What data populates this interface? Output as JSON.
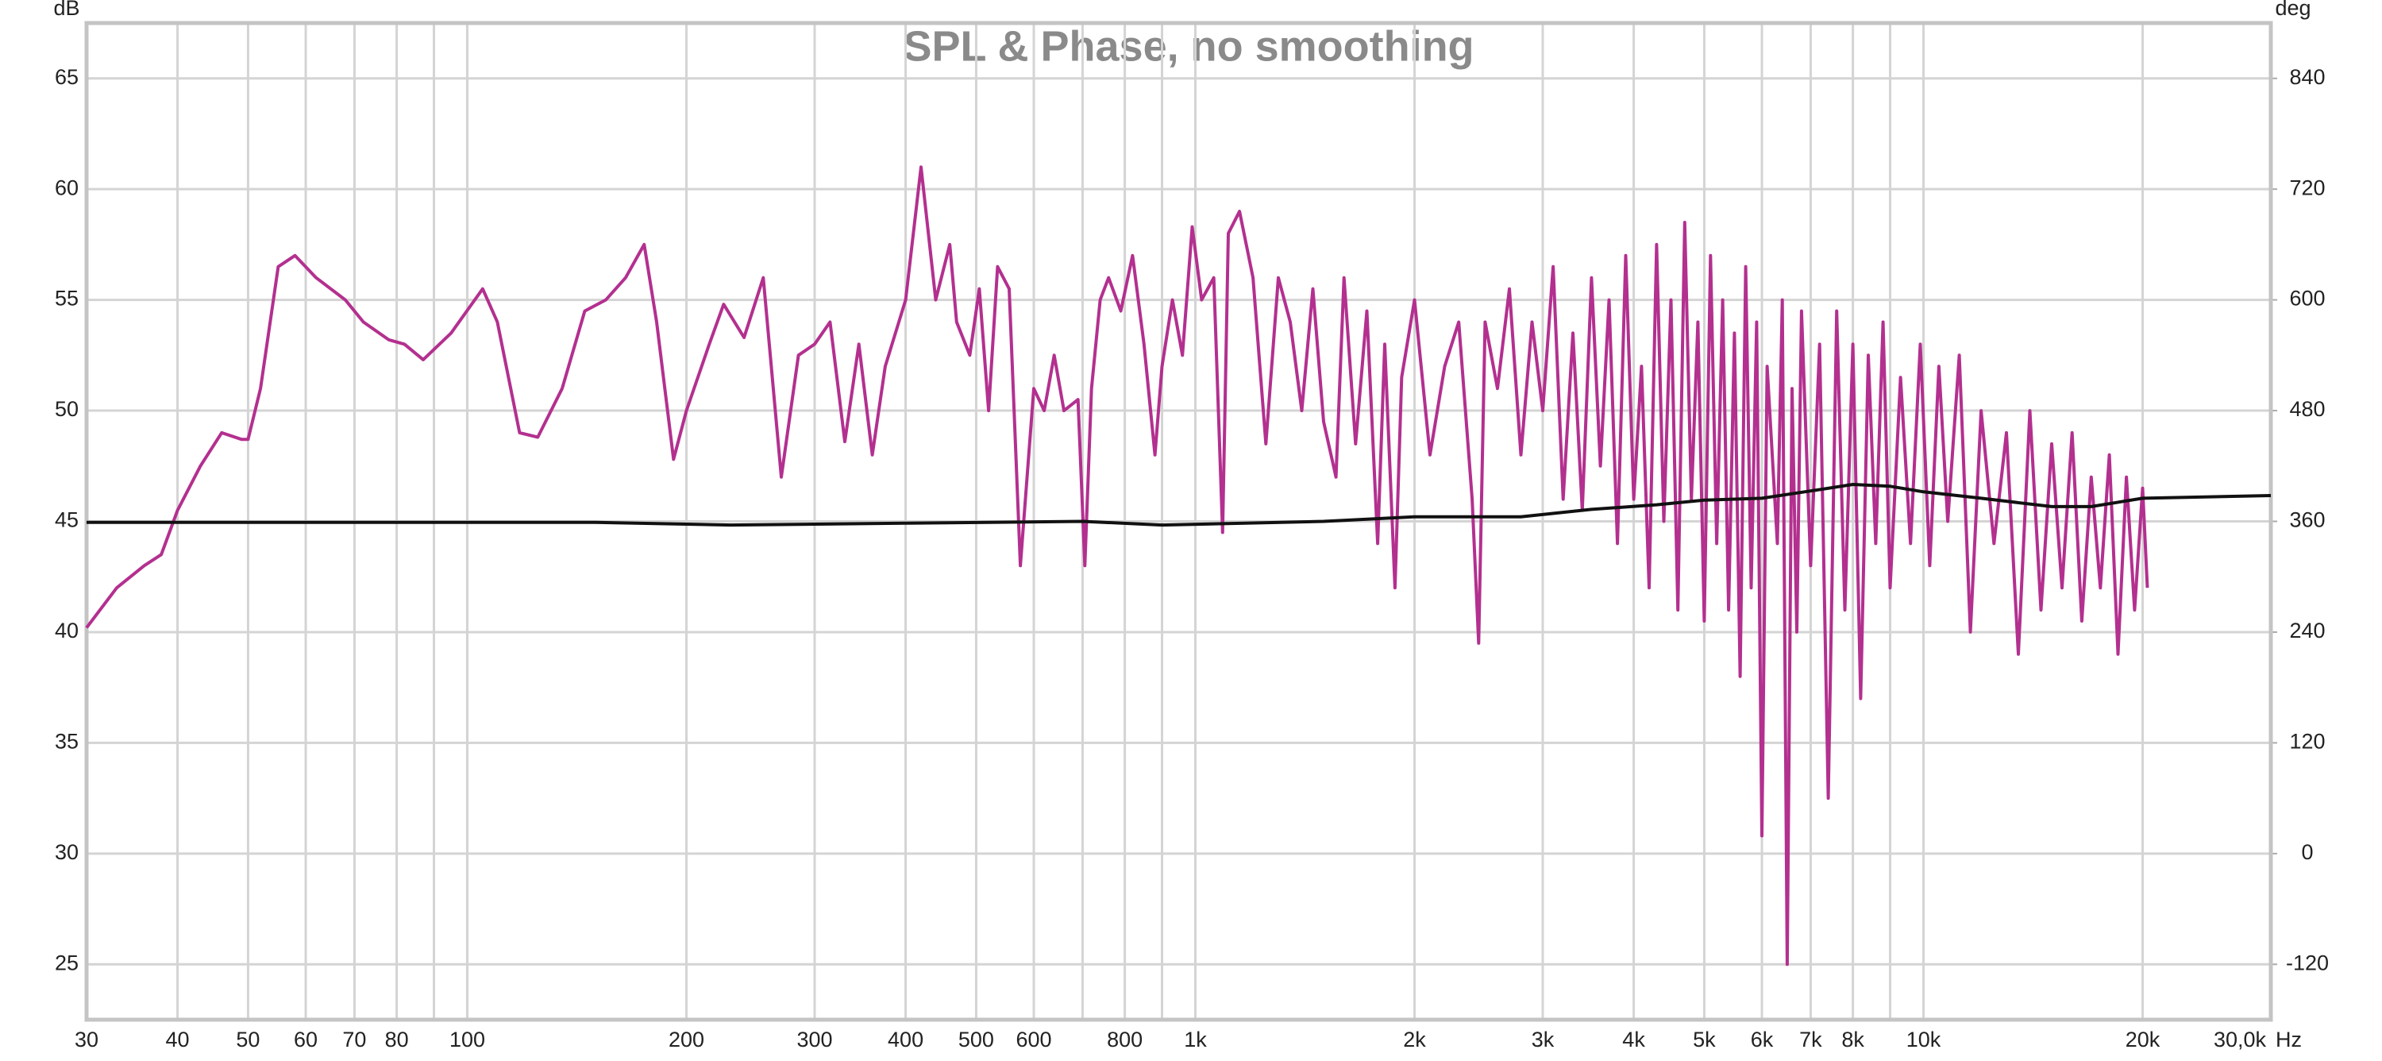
{
  "chart_data": {
    "type": "line",
    "title": "SPL & Phase, no smoothing",
    "xlabel": "Hz",
    "ylabel": "dB",
    "y2label": "deg",
    "xscale": "log",
    "grid": true,
    "xlim": [
      30,
      30000
    ],
    "ylim": [
      22.5,
      67.5
    ],
    "y2lim": [
      -180,
      900
    ],
    "xticks": [
      30,
      40,
      50,
      60,
      70,
      80,
      100,
      200,
      300,
      400,
      500,
      600,
      800,
      {
        "value": 1000,
        "label": "1k"
      },
      {
        "value": 2000,
        "label": "2k"
      },
      {
        "value": 3000,
        "label": "3k"
      },
      {
        "value": 4000,
        "label": "4k"
      },
      {
        "value": 5000,
        "label": "5k"
      },
      {
        "value": 6000,
        "label": "6k"
      },
      {
        "value": 7000,
        "label": "7k"
      },
      {
        "value": 8000,
        "label": "8k"
      },
      {
        "value": 10000,
        "label": "10k"
      },
      {
        "value": 20000,
        "label": "20k"
      },
      {
        "value": 30000,
        "label": "30,0k"
      }
    ],
    "xgrid_minor": [
      90,
      700,
      900,
      9000
    ],
    "yticks": [
      25,
      30,
      35,
      40,
      45,
      50,
      55,
      60,
      65
    ],
    "y2ticks": [
      -120,
      0,
      120,
      240,
      360,
      480,
      600,
      720,
      840
    ],
    "series": [
      {
        "name": "SPL",
        "color": "#b3308f",
        "x": [
          30,
          33,
          36,
          38,
          40,
          43,
          46,
          49,
          50,
          52,
          55,
          58,
          62,
          68,
          72,
          78,
          82,
          87,
          95,
          105,
          110,
          118,
          125,
          135,
          145,
          155,
          165,
          175,
          182,
          192,
          200,
          215,
          225,
          240,
          255,
          270,
          285,
          300,
          315,
          330,
          345,
          360,
          375,
          400,
          420,
          440,
          460,
          470,
          490,
          505,
          520,
          535,
          555,
          575,
          600,
          620,
          640,
          660,
          690,
          705,
          720,
          740,
          760,
          790,
          820,
          850,
          880,
          900,
          930,
          960,
          990,
          1020,
          1060,
          1090,
          1110,
          1150,
          1200,
          1250,
          1300,
          1350,
          1400,
          1450,
          1500,
          1560,
          1600,
          1660,
          1720,
          1780,
          1820,
          1880,
          1920,
          2000,
          2100,
          2200,
          2300,
          2400,
          2450,
          2500,
          2600,
          2700,
          2800,
          2900,
          3000,
          3100,
          3200,
          3300,
          3400,
          3500,
          3600,
          3700,
          3800,
          3900,
          4000,
          4100,
          4200,
          4300,
          4400,
          4500,
          4600,
          4700,
          4800,
          4900,
          5000,
          5100,
          5200,
          5300,
          5400,
          5500,
          5600,
          5700,
          5800,
          5900,
          6000,
          6100,
          6300,
          6400,
          6500,
          6600,
          6700,
          6800,
          7000,
          7200,
          7400,
          7600,
          7800,
          8000,
          8200,
          8400,
          8600,
          8800,
          9000,
          9300,
          9600,
          9900,
          10200,
          10500,
          10800,
          11200,
          11600,
          12000,
          12500,
          13000,
          13500,
          14000,
          14500,
          15000,
          15500,
          16000,
          16500,
          17000,
          17500,
          18000,
          18500,
          19000,
          19500,
          20000,
          20300
        ],
        "values": [
          40.2,
          42,
          43,
          43.5,
          45.5,
          47.5,
          49,
          48.7,
          48.7,
          51,
          56.5,
          57,
          56,
          55,
          54,
          53.2,
          53,
          52.3,
          53.5,
          55.5,
          54,
          49,
          48.8,
          51,
          54.5,
          55,
          56,
          57.5,
          54,
          47.8,
          50,
          53,
          54.8,
          53.3,
          56,
          47,
          52.5,
          53,
          54,
          48.6,
          53,
          48,
          52,
          55,
          61,
          55,
          57.5,
          54,
          52.5,
          55.5,
          50,
          56.5,
          55.5,
          43,
          51,
          50,
          52.5,
          50,
          50.5,
          43,
          51,
          55,
          56,
          54.5,
          57,
          53,
          48,
          52,
          55,
          52.5,
          58.3,
          55,
          56,
          44.5,
          58,
          59,
          56,
          48.5,
          56,
          54,
          50,
          55.5,
          49.5,
          47,
          56,
          48.5,
          54.5,
          44,
          53,
          42,
          51.5,
          55,
          48,
          52,
          54,
          46,
          39.5,
          54,
          51,
          55.5,
          48,
          54,
          50,
          56.5,
          46,
          53.5,
          45.5,
          56,
          47.5,
          55,
          44,
          57,
          46,
          52,
          42,
          57.5,
          45,
          55,
          41,
          58.5,
          46,
          54,
          40.5,
          57,
          44,
          55,
          41,
          53.5,
          38,
          56.5,
          42,
          54,
          30.8,
          52,
          44,
          55,
          25,
          51,
          40,
          54.5,
          43,
          53,
          32.5,
          54.5,
          41,
          53,
          37,
          52.5,
          44,
          54,
          42,
          51.5,
          44,
          53,
          43,
          52,
          45,
          52.5,
          40,
          50,
          44,
          49,
          39,
          50,
          41,
          48.5,
          42,
          49,
          40.5,
          47,
          42,
          48,
          39,
          47,
          41,
          46.5,
          42
        ]
      },
      {
        "name": "Phase",
        "color": "#111111",
        "axis": "y2",
        "x": [
          30,
          100,
          150,
          230,
          400,
          700,
          900,
          1500,
          2000,
          2800,
          3500,
          4300,
          5000,
          6000,
          7000,
          8000,
          9000,
          10000,
          12000,
          15000,
          17000,
          20000,
          30000
        ],
        "values": [
          359,
          359,
          359,
          356,
          358,
          360,
          356,
          360,
          365,
          365,
          373,
          378,
          383,
          385,
          393,
          400,
          398,
          392,
          385,
          376,
          376,
          385,
          388
        ]
      }
    ]
  }
}
